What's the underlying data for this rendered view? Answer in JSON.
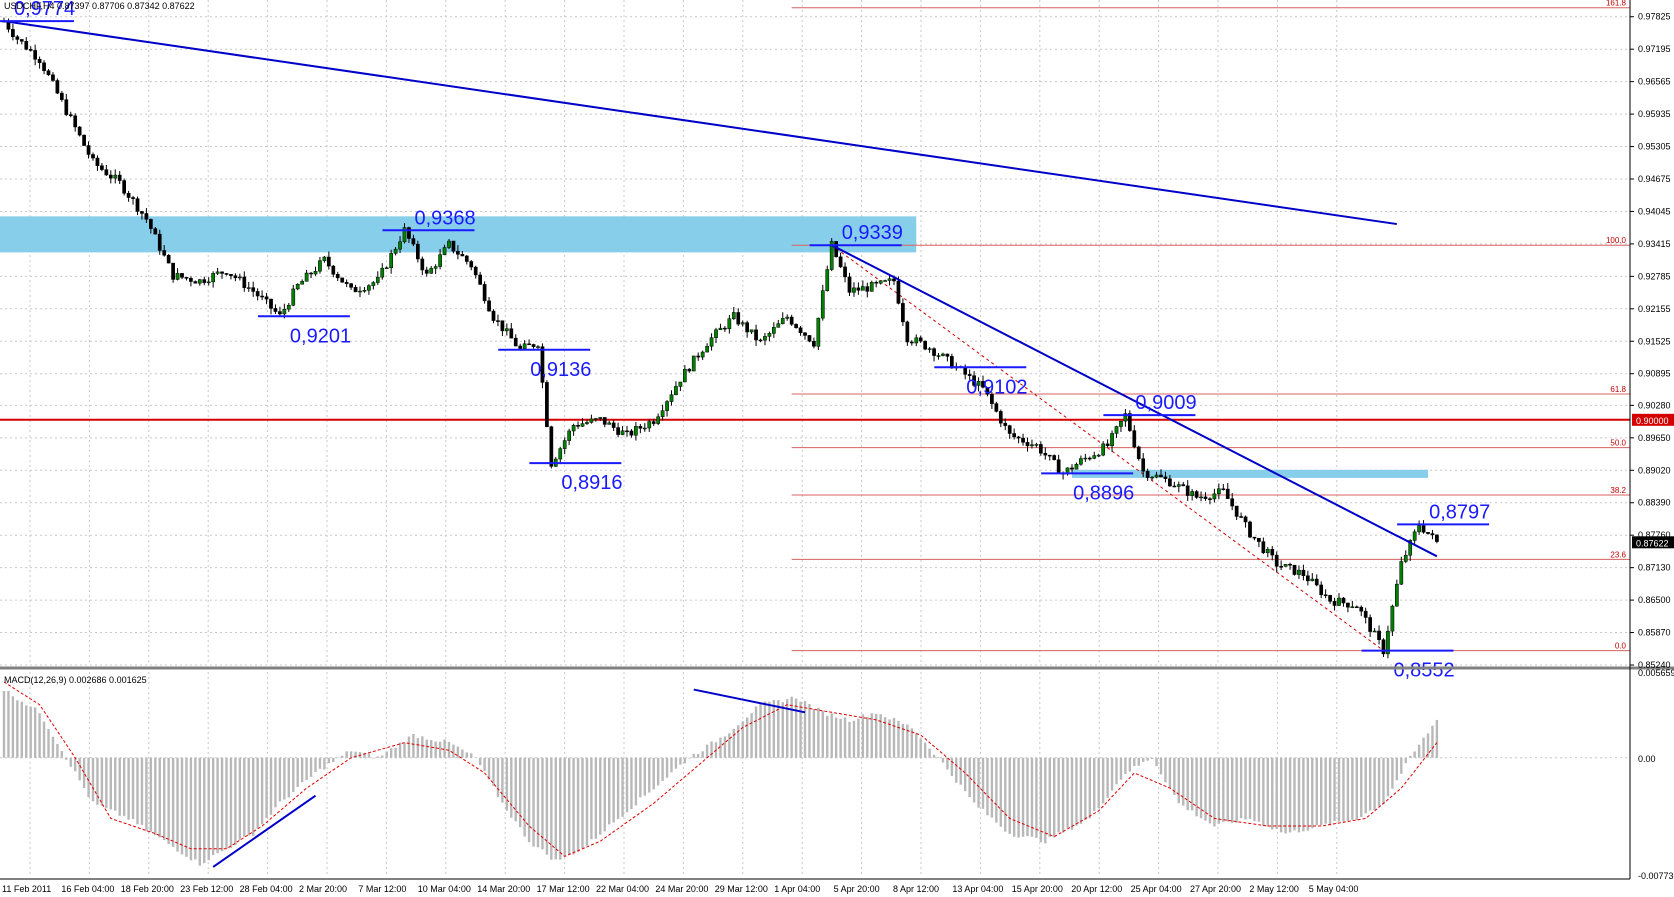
{
  "window": {
    "symbol_info": "USDCHF,H4  0.87397 0.87706 0.87342 0.87622"
  },
  "colors": {
    "background": "#ffffff",
    "grid": "#c8c8c8",
    "candle": "#008000",
    "trendline": "#0000c8",
    "level_red": "#d40000",
    "fib_line": "#d86060",
    "zone": "#87ceeb",
    "annotation": "#1a1aff",
    "macd_hist": "#b8b8b8",
    "macd_signal": "#e00000"
  },
  "chart_data": [
    {
      "type": "candlestick",
      "name": "price",
      "ylim": [
        0.8524,
        0.9815
      ],
      "y_ticks": [
        "0.97825",
        "0.97195",
        "0.96565",
        "0.95935",
        "0.95305",
        "0.94675",
        "0.94045",
        "0.93415",
        "0.92785",
        "0.92155",
        "0.91525",
        "0.90895",
        "0.90280",
        "0.89650",
        "0.89020",
        "0.88390",
        "0.87760",
        "0.87130",
        "0.86500",
        "0.85870",
        "0.85240"
      ],
      "x_ticks": [
        "11 Feb 2011",
        "16 Feb 04:00",
        "18 Feb 20:00",
        "23 Feb 12:00",
        "28 Feb 04:00",
        "2 Mar 20:00",
        "7 Mar 12:00",
        "10 Mar 04:00",
        "14 Mar 20:00",
        "17 Mar 12:00",
        "22 Mar 04:00",
        "24 Mar 20:00",
        "29 Mar 12:00",
        "1 Apr 04:00",
        "5 Apr 20:00",
        "8 Apr 12:00",
        "13 Apr 04:00",
        "15 Apr 20:00",
        "20 Apr 12:00",
        "25 Apr 04:00",
        "27 Apr 20:00",
        "2 May 12:00",
        "5 May 04:00"
      ],
      "current_price": "0.87622",
      "level_price": "0.90000",
      "close_path": [
        [
          0,
          0.9774
        ],
        [
          3,
          0.974
        ],
        [
          8,
          0.97
        ],
        [
          14,
          0.96
        ],
        [
          20,
          0.95
        ],
        [
          26,
          0.946
        ],
        [
          32,
          0.939
        ],
        [
          38,
          0.928
        ],
        [
          44,
          0.927
        ],
        [
          50,
          0.929
        ],
        [
          56,
          0.925
        ],
        [
          62,
          0.9201
        ],
        [
          66,
          0.926
        ],
        [
          72,
          0.931
        ],
        [
          78,
          0.925
        ],
        [
          84,
          0.927
        ],
        [
          90,
          0.9368
        ],
        [
          95,
          0.928
        ],
        [
          100,
          0.934
        ],
        [
          105,
          0.93
        ],
        [
          110,
          0.92
        ],
        [
          116,
          0.9136
        ],
        [
          120,
          0.915
        ],
        [
          123,
          0.8916
        ],
        [
          128,
          0.899
        ],
        [
          134,
          0.9
        ],
        [
          140,
          0.897
        ],
        [
          146,
          0.9
        ],
        [
          152,
          0.908
        ],
        [
          158,
          0.915
        ],
        [
          164,
          0.92
        ],
        [
          170,
          0.915
        ],
        [
          176,
          0.92
        ],
        [
          182,
          0.915
        ],
        [
          186,
          0.9339
        ],
        [
          190,
          0.925
        ],
        [
          196,
          0.926
        ],
        [
          200,
          0.927
        ],
        [
          203,
          0.916
        ],
        [
          208,
          0.914
        ],
        [
          214,
          0.9102
        ],
        [
          220,
          0.906
        ],
        [
          226,
          0.897
        ],
        [
          232,
          0.895
        ],
        [
          238,
          0.8896
        ],
        [
          242,
          0.892
        ],
        [
          248,
          0.895
        ],
        [
          252,
          0.9009
        ],
        [
          256,
          0.89
        ],
        [
          262,
          0.888
        ],
        [
          268,
          0.885
        ],
        [
          274,
          0.886
        ],
        [
          280,
          0.878
        ],
        [
          286,
          0.872
        ],
        [
          292,
          0.87
        ],
        [
          298,
          0.865
        ],
        [
          304,
          0.864
        ],
        [
          310,
          0.8552
        ],
        [
          314,
          0.872
        ],
        [
          318,
          0.8797
        ],
        [
          322,
          0.8762
        ]
      ],
      "annotations": [
        {
          "text": "0,9774",
          "price": 0.9774,
          "bar": 0
        },
        {
          "text": "0,9201",
          "price": 0.9201,
          "bar": 62
        },
        {
          "text": "0,9368",
          "price": 0.9368,
          "bar": 90
        },
        {
          "text": "0,9136",
          "price": 0.9136,
          "bar": 116
        },
        {
          "text": "0,8916",
          "price": 0.8916,
          "bar": 123
        },
        {
          "text": "0,9339",
          "price": 0.9339,
          "bar": 186
        },
        {
          "text": "0,9102",
          "price": 0.9102,
          "bar": 214
        },
        {
          "text": "0,9009",
          "price": 0.9009,
          "bar": 252
        },
        {
          "text": "0,8896",
          "price": 0.8896,
          "bar": 238
        },
        {
          "text": "0,8552",
          "price": 0.8552,
          "bar": 310
        },
        {
          "text": "0,8797",
          "price": 0.8797,
          "bar": 318
        }
      ],
      "fibonacci": {
        "levels": [
          {
            "label": "161.8",
            "price": 0.98
          },
          {
            "label": "100.0",
            "price": 0.9339
          },
          {
            "label": "61.8",
            "price": 0.905
          },
          {
            "label": "50.0",
            "price": 0.8946
          },
          {
            "label": "38.2",
            "price": 0.8854
          },
          {
            "label": "23.6",
            "price": 0.8729
          },
          {
            "label": "0.0",
            "price": 0.8552
          }
        ]
      }
    },
    {
      "type": "histogram+line",
      "name": "MACD",
      "title": "MACD(12,26,9) 0.002686 0.001625",
      "ylim": [
        -0.00773,
        0.005659
      ],
      "y_ticks": [
        "0.005659",
        "0.00",
        "-0.00773"
      ],
      "hist_path": [
        [
          0,
          0.0045
        ],
        [
          8,
          0.003
        ],
        [
          14,
          0.0
        ],
        [
          20,
          -0.003
        ],
        [
          28,
          -0.004
        ],
        [
          36,
          -0.0055
        ],
        [
          44,
          -0.007
        ],
        [
          50,
          -0.006
        ],
        [
          56,
          -0.005
        ],
        [
          62,
          -0.003
        ],
        [
          70,
          -0.001
        ],
        [
          78,
          0.0005
        ],
        [
          84,
          0.0
        ],
        [
          92,
          0.0015
        ],
        [
          100,
          0.001
        ],
        [
          106,
          0.0
        ],
        [
          112,
          -0.003
        ],
        [
          118,
          -0.0055
        ],
        [
          124,
          -0.0068
        ],
        [
          130,
          -0.006
        ],
        [
          138,
          -0.004
        ],
        [
          146,
          -0.002
        ],
        [
          154,
          0.0
        ],
        [
          162,
          0.0015
        ],
        [
          170,
          0.0035
        ],
        [
          178,
          0.004
        ],
        [
          184,
          0.003
        ],
        [
          190,
          0.0025
        ],
        [
          196,
          0.003
        ],
        [
          204,
          0.002
        ],
        [
          210,
          0.0
        ],
        [
          218,
          -0.003
        ],
        [
          226,
          -0.005
        ],
        [
          234,
          -0.0055
        ],
        [
          244,
          -0.004
        ],
        [
          252,
          -0.001
        ],
        [
          258,
          0.0
        ],
        [
          264,
          -0.003
        ],
        [
          272,
          -0.0045
        ],
        [
          280,
          -0.004
        ],
        [
          288,
          -0.005
        ],
        [
          296,
          -0.0045
        ],
        [
          304,
          -0.004
        ],
        [
          310,
          -0.003
        ],
        [
          316,
          0.0
        ],
        [
          322,
          0.0025
        ]
      ],
      "signal_path": [
        [
          0,
          0.005
        ],
        [
          8,
          0.0035
        ],
        [
          16,
          0.0
        ],
        [
          24,
          -0.004
        ],
        [
          34,
          -0.005
        ],
        [
          42,
          -0.006
        ],
        [
          50,
          -0.006
        ],
        [
          58,
          -0.0045
        ],
        [
          68,
          -0.002
        ],
        [
          78,
          0.0
        ],
        [
          90,
          0.001
        ],
        [
          100,
          0.0005
        ],
        [
          108,
          -0.001
        ],
        [
          118,
          -0.0045
        ],
        [
          126,
          -0.0065
        ],
        [
          134,
          -0.0055
        ],
        [
          146,
          -0.003
        ],
        [
          156,
          -0.0005
        ],
        [
          166,
          0.002
        ],
        [
          176,
          0.0035
        ],
        [
          186,
          0.003
        ],
        [
          196,
          0.0025
        ],
        [
          206,
          0.0015
        ],
        [
          216,
          -0.001
        ],
        [
          226,
          -0.004
        ],
        [
          236,
          -0.0052
        ],
        [
          246,
          -0.0035
        ],
        [
          254,
          -0.001
        ],
        [
          262,
          -0.002
        ],
        [
          272,
          -0.004
        ],
        [
          284,
          -0.0045
        ],
        [
          296,
          -0.0045
        ],
        [
          306,
          -0.004
        ],
        [
          314,
          -0.002
        ],
        [
          322,
          0.001
        ]
      ]
    }
  ]
}
